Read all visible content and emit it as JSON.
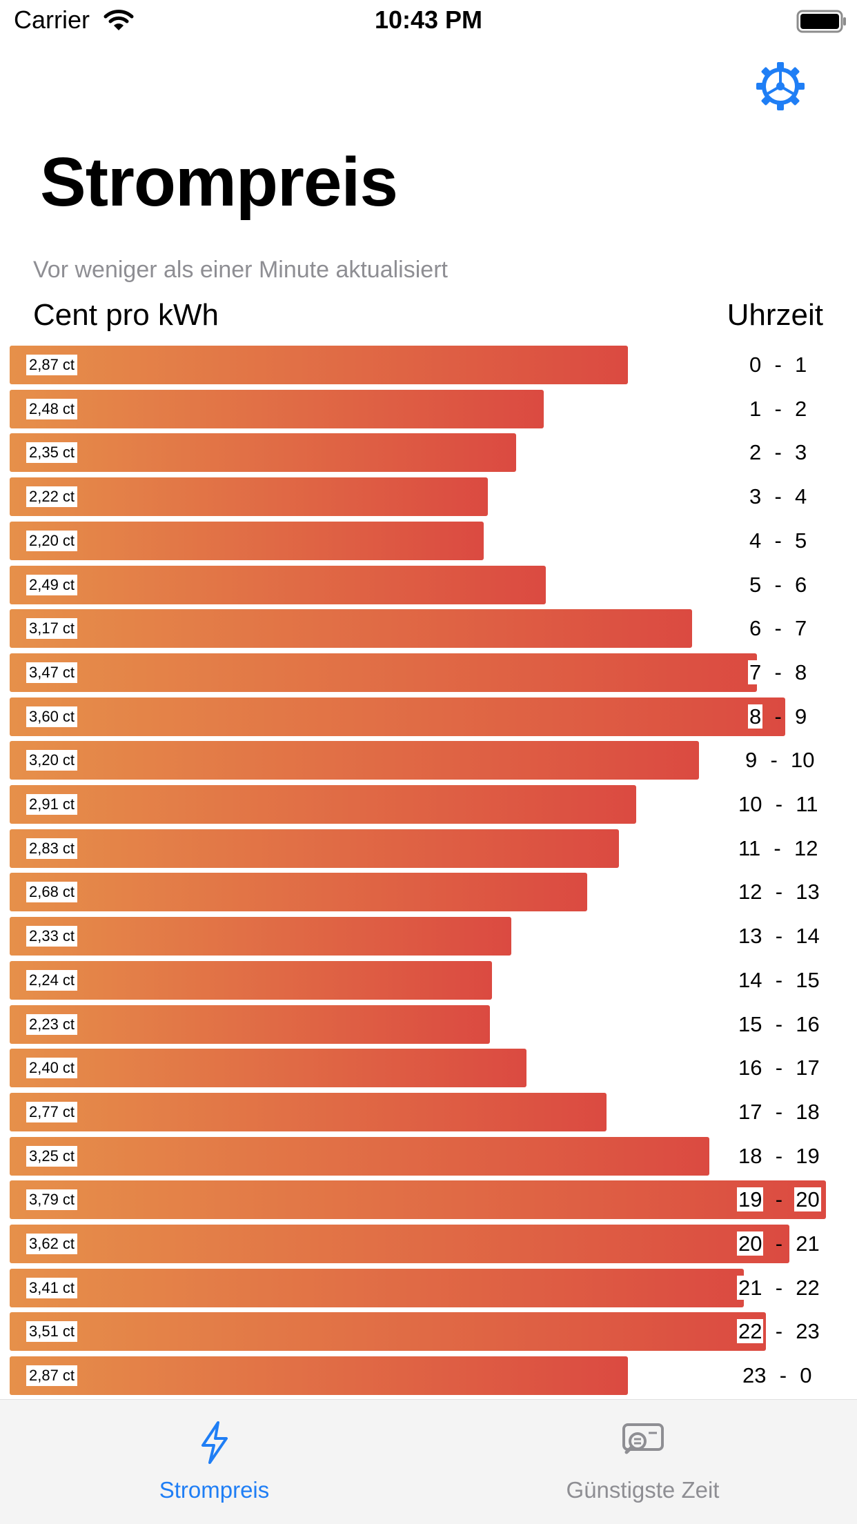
{
  "status_bar": {
    "carrier": "Carrier",
    "time": "10:43 PM"
  },
  "page": {
    "title": "Strompreis",
    "updated": "Vor weniger als einer Minute aktualisiert",
    "col_left": "Cent pro kWh",
    "col_right": "Uhrzeit"
  },
  "colors": {
    "accent": "#1f7ef5",
    "bar_start": "#e6904a",
    "bar_end": "#db4a41",
    "inactive": "#8e8e93"
  },
  "icons": {
    "settings": "gear-icon",
    "tab1": "lightning-bolt-icon",
    "tab2": "chat-search-icon"
  },
  "prices": [
    {
      "label": "2,87 ct",
      "value": 2.87,
      "from": "0",
      "to": "1"
    },
    {
      "label": "2,48 ct",
      "value": 2.48,
      "from": "1",
      "to": "2"
    },
    {
      "label": "2,35 ct",
      "value": 2.35,
      "from": "2",
      "to": "3"
    },
    {
      "label": "2,22 ct",
      "value": 2.22,
      "from": "3",
      "to": "4"
    },
    {
      "label": "2,20 ct",
      "value": 2.2,
      "from": "4",
      "to": "5"
    },
    {
      "label": "2,49 ct",
      "value": 2.49,
      "from": "5",
      "to": "6"
    },
    {
      "label": "3,17 ct",
      "value": 3.17,
      "from": "6",
      "to": "7"
    },
    {
      "label": "3,47 ct",
      "value": 3.47,
      "from": "7",
      "to": "8"
    },
    {
      "label": "3,60 ct",
      "value": 3.6,
      "from": "8",
      "to": "9"
    },
    {
      "label": "3,20 ct",
      "value": 3.2,
      "from": "9",
      "to": "10"
    },
    {
      "label": "2,91 ct",
      "value": 2.91,
      "from": "10",
      "to": "11"
    },
    {
      "label": "2,83 ct",
      "value": 2.83,
      "from": "11",
      "to": "12"
    },
    {
      "label": "2,68 ct",
      "value": 2.68,
      "from": "12",
      "to": "13"
    },
    {
      "label": "2,33 ct",
      "value": 2.33,
      "from": "13",
      "to": "14"
    },
    {
      "label": "2,24 ct",
      "value": 2.24,
      "from": "14",
      "to": "15"
    },
    {
      "label": "2,23 ct",
      "value": 2.23,
      "from": "15",
      "to": "16"
    },
    {
      "label": "2,40 ct",
      "value": 2.4,
      "from": "16",
      "to": "17"
    },
    {
      "label": "2,77 ct",
      "value": 2.77,
      "from": "17",
      "to": "18"
    },
    {
      "label": "3,25 ct",
      "value": 3.25,
      "from": "18",
      "to": "19"
    },
    {
      "label": "3,79 ct",
      "value": 3.79,
      "from": "19",
      "to": "20"
    },
    {
      "label": "3,62 ct",
      "value": 3.62,
      "from": "20",
      "to": "21"
    },
    {
      "label": "3,41 ct",
      "value": 3.41,
      "from": "21",
      "to": "22"
    },
    {
      "label": "3,51 ct",
      "value": 3.51,
      "from": "22",
      "to": "23"
    },
    {
      "label": "2,87 ct",
      "value": 2.87,
      "from": "23",
      "to": "0"
    }
  ],
  "tabs": [
    {
      "label": "Strompreis",
      "active": true
    },
    {
      "label": "Günstigste Zeit",
      "active": false
    }
  ]
}
